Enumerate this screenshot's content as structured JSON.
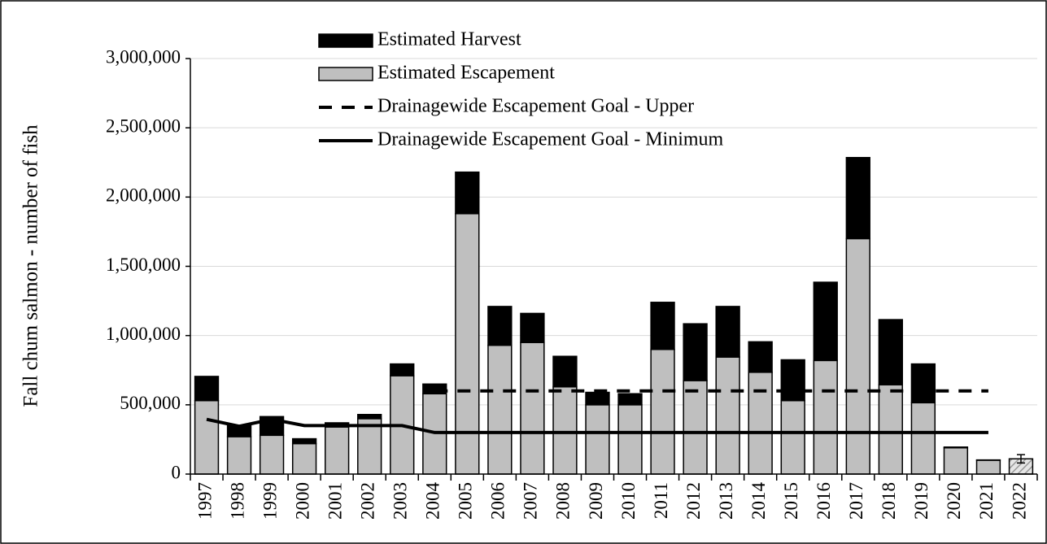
{
  "chart_data": {
    "type": "bar",
    "y_label": "Fall chum salmon - number of fish",
    "categories": [
      "1997",
      "1998",
      "1999",
      "2000",
      "2001",
      "2002",
      "2003",
      "2004",
      "2005",
      "2006",
      "2007",
      "2008",
      "2009",
      "2010",
      "2011",
      "2012",
      "2013",
      "2014",
      "2015",
      "2016",
      "2017",
      "2018",
      "2019",
      "2020",
      "2021",
      "2022"
    ],
    "series": [
      {
        "name": "Estimated Harvest",
        "kind": "bar",
        "color": "#000000",
        "values": [
          175000,
          80000,
          135000,
          35000,
          30000,
          30000,
          85000,
          70000,
          300000,
          280000,
          210000,
          220000,
          90000,
          80000,
          340000,
          410000,
          365000,
          220000,
          295000,
          565000,
          585000,
          470000,
          280000,
          5000,
          2000,
          null
        ]
      },
      {
        "name": "Estimated Escapement",
        "kind": "bar",
        "color": "#bfbfbf",
        "values": [
          530000,
          270000,
          280000,
          220000,
          340000,
          400000,
          710000,
          580000,
          1880000,
          930000,
          950000,
          630000,
          500000,
          500000,
          900000,
          675000,
          845000,
          735000,
          530000,
          820000,
          1700000,
          645000,
          515000,
          190000,
          100000,
          110000
        ],
        "errors": [
          null,
          null,
          null,
          null,
          null,
          null,
          null,
          null,
          null,
          null,
          null,
          null,
          null,
          null,
          null,
          null,
          null,
          null,
          null,
          null,
          null,
          null,
          null,
          null,
          null,
          30000
        ],
        "hatched": [
          "2022"
        ]
      },
      {
        "name": "Drainagewide Escapement Goal - Upper",
        "kind": "line",
        "dashed": true,
        "color": "#000000",
        "values": [
          null,
          null,
          null,
          null,
          null,
          null,
          null,
          600000,
          600000,
          600000,
          600000,
          600000,
          600000,
          600000,
          600000,
          600000,
          600000,
          600000,
          600000,
          600000,
          600000,
          600000,
          600000,
          600000,
          600000,
          null
        ]
      },
      {
        "name": "Drainagewide Escapement Goal - Minimum",
        "kind": "line",
        "dashed": false,
        "color": "#000000",
        "values": [
          395000,
          345000,
          395000,
          350000,
          350000,
          350000,
          350000,
          300000,
          300000,
          300000,
          300000,
          300000,
          300000,
          300000,
          300000,
          300000,
          300000,
          300000,
          300000,
          300000,
          300000,
          300000,
          300000,
          300000,
          300000,
          null
        ]
      }
    ],
    "ylim": [
      0,
      3000000
    ],
    "yticks": [
      0,
      {
        "value": 500000,
        "label": "500,000"
      },
      {
        "value": 1000000,
        "label": "1,000,000"
      },
      {
        "value": 1500000,
        "label": "1,500,000"
      },
      {
        "value": 2000000,
        "label": "2,000,000"
      },
      {
        "value": 2500000,
        "label": "2,500,000"
      },
      {
        "value": 3000000,
        "label": "3,000,000"
      }
    ],
    "grid": true,
    "legend": "top-left"
  }
}
